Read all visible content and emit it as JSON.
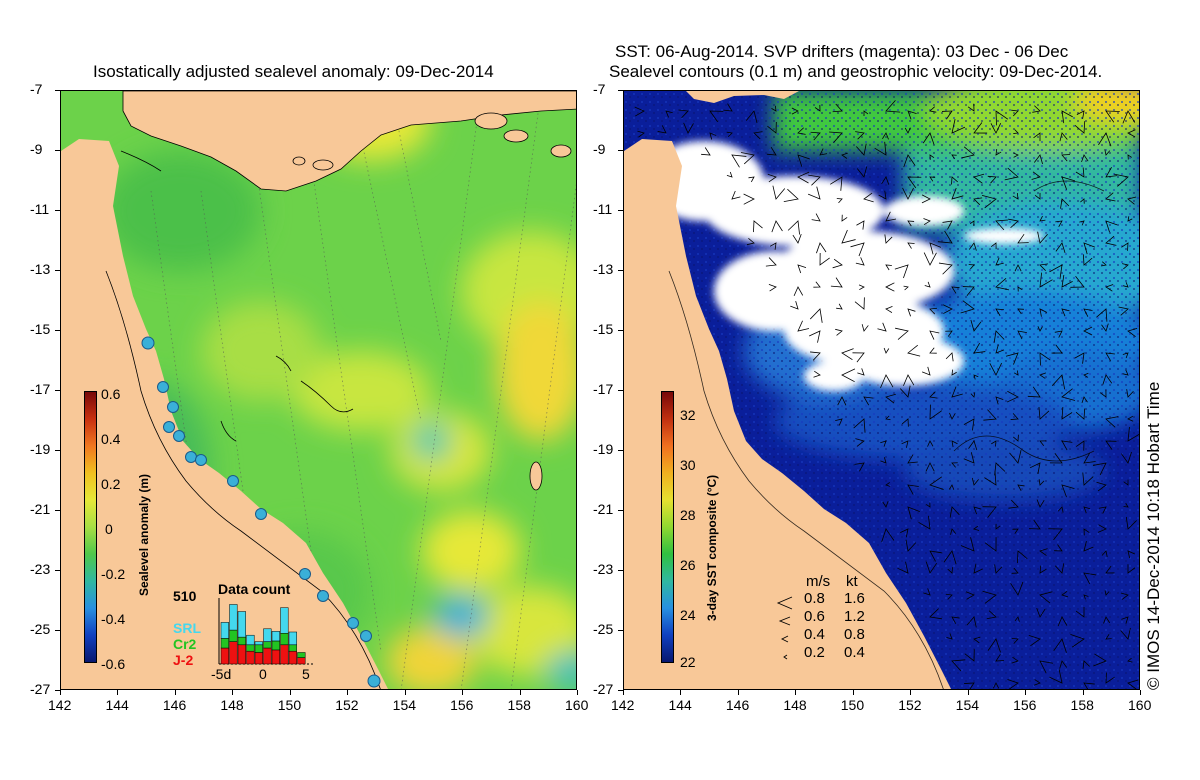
{
  "left_panel": {
    "title": "Isostatically adjusted sealevel anomaly: 09-Dec-2014",
    "colorbar": {
      "title": "Sealevel anomaly (m)",
      "ticks": [
        "0.6",
        "0.4",
        "0.2",
        "0",
        "-0.2",
        "-0.4",
        "-0.6"
      ]
    },
    "data_count": {
      "title": "Data count",
      "max": "510",
      "missions": [
        {
          "name": "SRL",
          "color": "#44d8ee"
        },
        {
          "name": "Cr2",
          "color": "#22c422"
        },
        {
          "name": "J-2",
          "color": "#ee1111"
        }
      ],
      "axis_ticks": [
        "-5d",
        "0",
        "5"
      ],
      "bars": [
        {
          "j2": 0.25,
          "cr2": 0.15,
          "srl": 0.25
        },
        {
          "j2": 0.35,
          "cr2": 0.18,
          "srl": 0.4
        },
        {
          "j2": 0.3,
          "cr2": 0.12,
          "srl": 0.4
        },
        {
          "j2": 0.2,
          "cr2": 0.1,
          "srl": 0.15
        },
        {
          "j2": 0.18,
          "cr2": 0.12,
          "srl": 0.05
        },
        {
          "j2": 0.25,
          "cr2": 0.1,
          "srl": 0.2
        },
        {
          "j2": 0.22,
          "cr2": 0.14,
          "srl": 0.15
        },
        {
          "j2": 0.3,
          "cr2": 0.18,
          "srl": 0.4
        },
        {
          "j2": 0.2,
          "cr2": 0.1,
          "srl": 0.2
        },
        {
          "j2": 0.1,
          "cr2": 0.08,
          "srl": 0.0
        }
      ]
    }
  },
  "right_panel": {
    "title_line1": "SST: 06-Aug-2014. SVP drifters (magenta): 03 Dec - 06 Dec",
    "title_line2": "Sealevel contours (0.1 m) and geostrophic velocity: 09-Dec-2014.",
    "colorbar": {
      "title": "3-day SST composite (°C)",
      "ticks": [
        "32",
        "30",
        "28",
        "26",
        "24",
        "22"
      ]
    },
    "velocity_legend": {
      "header_ms": "m/s",
      "header_kt": "kt",
      "rows": [
        {
          "ms": "0.8",
          "kt": "1.6"
        },
        {
          "ms": "0.6",
          "kt": "1.2"
        },
        {
          "ms": "0.4",
          "kt": "0.8"
        },
        {
          "ms": "0.2",
          "kt": "0.4"
        }
      ]
    }
  },
  "axes": {
    "lat_ticks": [
      "-7",
      "-9",
      "-11",
      "-13",
      "-15",
      "-17",
      "-19",
      "-21",
      "-23",
      "-25",
      "-27"
    ],
    "lon_ticks": [
      "142",
      "144",
      "146",
      "148",
      "150",
      "152",
      "154",
      "156",
      "158",
      "160"
    ]
  },
  "copyright": "© IMOS 14-Dec-2014 10:18 Hobart Time",
  "colors": {
    "land": "#f8c898",
    "sla_base": "#6cd24a",
    "sst_deep": "#0a1e9a",
    "cloud": "#ffffff"
  }
}
